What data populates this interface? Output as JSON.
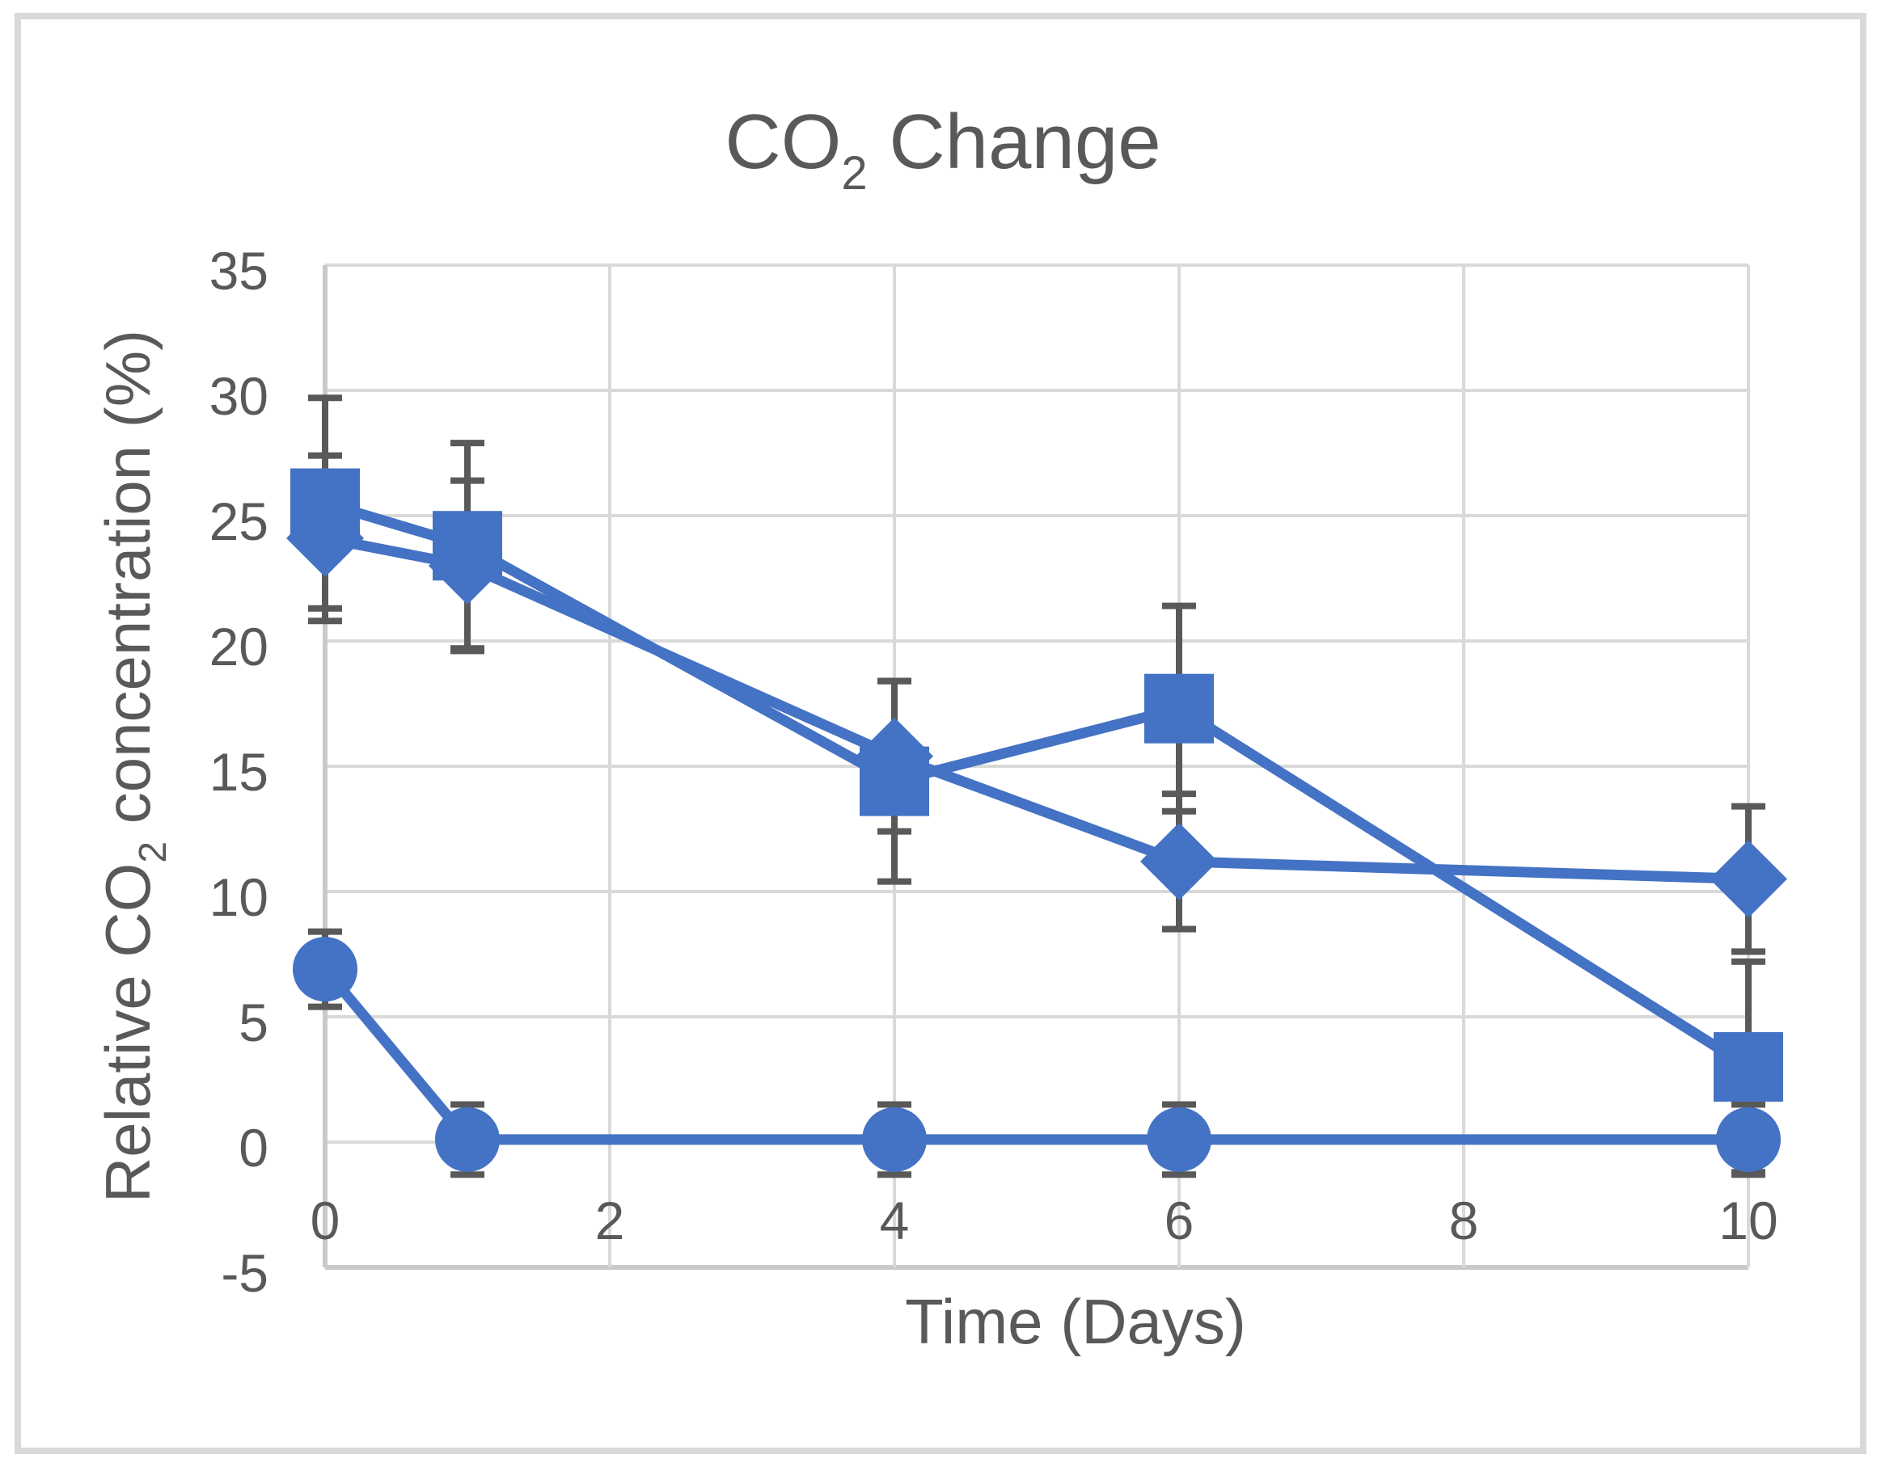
{
  "figure": {
    "title": {
      "prefix": "CO",
      "subscript": "2",
      "suffix": " Change"
    },
    "x_axis_title": "Time (Days)",
    "y_axis_title": {
      "prefix": "Relative CO",
      "subscript": "2",
      "suffix": " concentration (%)"
    }
  },
  "colors": {
    "series_blue": "#4472C4",
    "error_bar_gray": "#595959",
    "text_gray": "#595959",
    "gridline_gray": "#D9D9D9",
    "axis_line_gray": "#C9C9C9",
    "figure_border_gray": "#D9D9D9",
    "background": "#FFFFFF"
  },
  "chart_data": {
    "type": "line",
    "title": "CO2 Change",
    "xlabel": "Time (Days)",
    "ylabel": "Relative CO2 concentration (%)",
    "x": [
      0,
      1,
      4,
      6,
      10
    ],
    "series": [
      {
        "name": "diamond-series",
        "marker": "diamond",
        "values": [
          24.1,
          23.0,
          15.4,
          11.2,
          10.5
        ],
        "error": [
          3.3,
          3.4,
          3.0,
          2.7,
          2.9
        ]
      },
      {
        "name": "square-series",
        "marker": "square",
        "values": [
          25.5,
          23.8,
          14.4,
          17.3,
          3.0
        ],
        "error": [
          4.2,
          4.1,
          4.0,
          4.1,
          4.2
        ]
      },
      {
        "name": "circle-series",
        "marker": "circle",
        "values": [
          6.9,
          0.1,
          0.1,
          0.1,
          0.1
        ],
        "error": [
          1.5,
          1.4,
          1.4,
          1.4,
          1.4
        ]
      }
    ],
    "error_bars": true,
    "xlim": [
      0,
      10
    ],
    "ylim": [
      -5,
      35
    ],
    "x_ticks": [
      0,
      2,
      4,
      6,
      8,
      10
    ],
    "y_ticks": [
      -5,
      0,
      5,
      10,
      15,
      20,
      25,
      30,
      35
    ],
    "grid": true,
    "legend": "none"
  }
}
